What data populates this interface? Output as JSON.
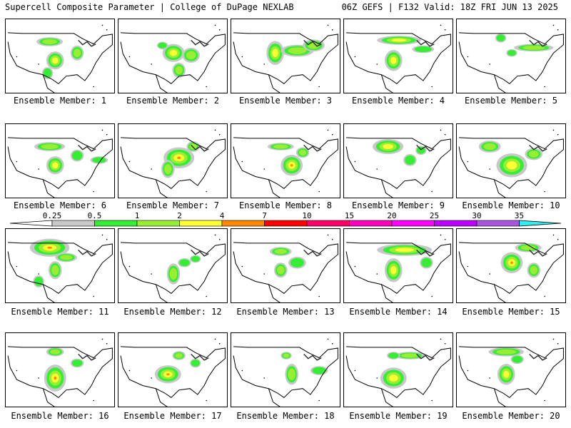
{
  "header": {
    "left": "Supercell Composite Parameter | College of DuPage NEXLAB",
    "right": "06Z GEFS | F132 Valid: 18Z FRI JUN 13 2025"
  },
  "legend": {
    "ticks": [
      "0.25",
      "0.5",
      "1",
      "2",
      "4",
      "7",
      "10",
      "15",
      "20",
      "25",
      "30",
      "35"
    ],
    "colors": [
      "#c8c8c8",
      "#33ee33",
      "#99ee33",
      "#ffff33",
      "#ff8800",
      "#ff0000",
      "#ff0066",
      "#ff00bb",
      "#ff00ff",
      "#bb00ff",
      "#aa55dd",
      "#33eeee"
    ]
  },
  "panels": [
    {
      "label": "Ensemble Member: 1",
      "blobs": [
        [
          0.4,
          0.3,
          0.12,
          0.06,
          2
        ],
        [
          0.45,
          0.55,
          0.08,
          0.12,
          3
        ],
        [
          0.65,
          0.45,
          0.06,
          0.1,
          2
        ],
        [
          0.38,
          0.72,
          0.05,
          0.08,
          1
        ]
      ]
    },
    {
      "label": "Ensemble Member: 2",
      "blobs": [
        [
          0.5,
          0.45,
          0.1,
          0.12,
          3
        ],
        [
          0.66,
          0.48,
          0.08,
          0.1,
          2
        ],
        [
          0.55,
          0.68,
          0.06,
          0.1,
          2
        ],
        [
          0.4,
          0.35,
          0.05,
          0.05,
          1
        ]
      ]
    },
    {
      "label": "Ensemble Member: 3",
      "blobs": [
        [
          0.4,
          0.45,
          0.08,
          0.16,
          3
        ],
        [
          0.6,
          0.42,
          0.15,
          0.08,
          2
        ],
        [
          0.75,
          0.35,
          0.1,
          0.08,
          2
        ]
      ]
    },
    {
      "label": "Ensemble Member: 4",
      "blobs": [
        [
          0.5,
          0.28,
          0.2,
          0.06,
          3
        ],
        [
          0.45,
          0.55,
          0.08,
          0.14,
          3
        ],
        [
          0.72,
          0.4,
          0.1,
          0.05,
          1
        ]
      ]
    },
    {
      "label": "Ensemble Member: 5",
      "blobs": [
        [
          0.7,
          0.38,
          0.18,
          0.05,
          2
        ],
        [
          0.5,
          0.45,
          0.05,
          0.05,
          1
        ],
        [
          0.4,
          0.25,
          0.05,
          0.06,
          1
        ]
      ]
    },
    {
      "label": "Ensemble Member: 6",
      "blobs": [
        [
          0.4,
          0.3,
          0.14,
          0.06,
          2
        ],
        [
          0.45,
          0.55,
          0.08,
          0.12,
          3
        ],
        [
          0.65,
          0.42,
          0.06,
          0.08,
          1
        ],
        [
          0.85,
          0.48,
          0.08,
          0.05,
          1
        ]
      ]
    },
    {
      "label": "Ensemble Member: 7",
      "blobs": [
        [
          0.55,
          0.45,
          0.14,
          0.14,
          4
        ],
        [
          0.45,
          0.6,
          0.06,
          0.12,
          2
        ],
        [
          0.68,
          0.3,
          0.06,
          0.07,
          2
        ]
      ]
    },
    {
      "label": "Ensemble Member: 8",
      "blobs": [
        [
          0.55,
          0.55,
          0.1,
          0.14,
          4
        ],
        [
          0.45,
          0.3,
          0.12,
          0.05,
          2
        ],
        [
          0.65,
          0.38,
          0.06,
          0.07,
          2
        ]
      ]
    },
    {
      "label": "Ensemble Member: 9",
      "blobs": [
        [
          0.4,
          0.3,
          0.14,
          0.1,
          3
        ],
        [
          0.6,
          0.48,
          0.06,
          0.08,
          1
        ],
        [
          0.7,
          0.35,
          0.05,
          0.06,
          1
        ]
      ]
    },
    {
      "label": "Ensemble Member: 10",
      "blobs": [
        [
          0.5,
          0.55,
          0.14,
          0.16,
          3
        ],
        [
          0.3,
          0.3,
          0.1,
          0.08,
          2
        ],
        [
          0.7,
          0.4,
          0.08,
          0.08,
          2
        ]
      ]
    },
    {
      "label": "Ensemble Member: 11",
      "blobs": [
        [
          0.4,
          0.25,
          0.18,
          0.12,
          4
        ],
        [
          0.55,
          0.38,
          0.1,
          0.06,
          2
        ],
        [
          0.45,
          0.55,
          0.06,
          0.12,
          2
        ],
        [
          0.3,
          0.7,
          0.05,
          0.08,
          1
        ]
      ]
    },
    {
      "label": "Ensemble Member: 12",
      "blobs": [
        [
          0.5,
          0.6,
          0.06,
          0.14,
          2
        ],
        [
          0.6,
          0.45,
          0.06,
          0.06,
          1
        ],
        [
          0.7,
          0.4,
          0.05,
          0.05,
          1
        ]
      ]
    },
    {
      "label": "Ensemble Member: 13",
      "blobs": [
        [
          0.45,
          0.3,
          0.1,
          0.06,
          2
        ],
        [
          0.45,
          0.55,
          0.06,
          0.1,
          2
        ],
        [
          0.6,
          0.45,
          0.08,
          0.08,
          1
        ]
      ]
    },
    {
      "label": "Ensemble Member: 14",
      "blobs": [
        [
          0.55,
          0.28,
          0.25,
          0.08,
          3
        ],
        [
          0.45,
          0.55,
          0.08,
          0.16,
          3
        ],
        [
          0.75,
          0.45,
          0.06,
          0.08,
          1
        ]
      ]
    },
    {
      "label": "Ensemble Member: 15",
      "blobs": [
        [
          0.5,
          0.45,
          0.1,
          0.14,
          4
        ],
        [
          0.65,
          0.25,
          0.12,
          0.06,
          2
        ],
        [
          0.7,
          0.55,
          0.06,
          0.1,
          2
        ]
      ]
    },
    {
      "label": "Ensemble Member: 16",
      "blobs": [
        [
          0.45,
          0.6,
          0.1,
          0.18,
          4
        ],
        [
          0.45,
          0.25,
          0.08,
          0.06,
          2
        ],
        [
          0.65,
          0.4,
          0.06,
          0.06,
          1
        ]
      ]
    },
    {
      "label": "Ensemble Member: 17",
      "blobs": [
        [
          0.45,
          0.55,
          0.12,
          0.12,
          4
        ],
        [
          0.55,
          0.3,
          0.06,
          0.06,
          2
        ],
        [
          0.7,
          0.4,
          0.05,
          0.06,
          1
        ]
      ]
    },
    {
      "label": "Ensemble Member: 18",
      "blobs": [
        [
          0.55,
          0.55,
          0.06,
          0.14,
          2
        ],
        [
          0.5,
          0.3,
          0.05,
          0.05,
          2
        ],
        [
          0.8,
          0.5,
          0.08,
          0.06,
          1
        ]
      ]
    },
    {
      "label": "Ensemble Member: 19",
      "blobs": [
        [
          0.45,
          0.6,
          0.12,
          0.14,
          3
        ],
        [
          0.6,
          0.3,
          0.14,
          0.05,
          2
        ],
        [
          0.45,
          0.3,
          0.06,
          0.05,
          1
        ]
      ]
    },
    {
      "label": "Ensemble Member: 20",
      "blobs": [
        [
          0.45,
          0.25,
          0.16,
          0.06,
          2
        ],
        [
          0.45,
          0.55,
          0.08,
          0.14,
          3
        ],
        [
          0.55,
          0.35,
          0.06,
          0.06,
          1
        ]
      ]
    }
  ]
}
